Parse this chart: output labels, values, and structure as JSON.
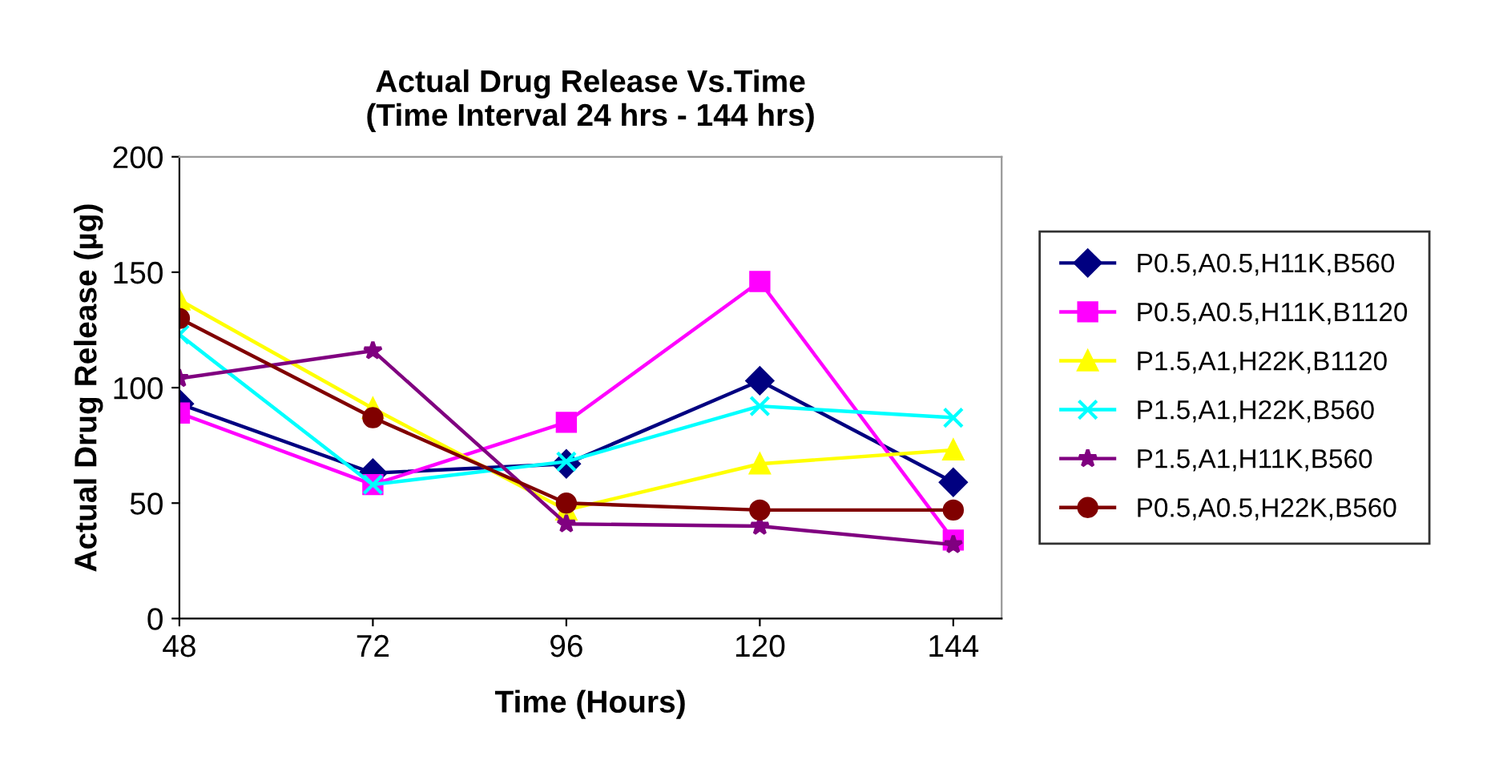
{
  "chart_data": {
    "type": "line",
    "title": "Actual Drug Release Vs.Time\n(Time Interval 24 hrs - 144 hrs)",
    "xlabel": "Time (Hours)",
    "ylabel": "Actual Drug Release (µg)",
    "x": [
      48,
      72,
      96,
      120,
      144
    ],
    "xlim": [
      48,
      150
    ],
    "xticks": [
      48,
      72,
      96,
      120,
      144
    ],
    "ylim": [
      0,
      200
    ],
    "yticks": [
      0,
      50,
      100,
      150,
      200
    ],
    "grid": false,
    "legend": "right",
    "series": [
      {
        "name": "P0.5,A0.5,H11K,B560",
        "color": "#000080",
        "marker": "diamond",
        "values": [
          93,
          63,
          67,
          103,
          59
        ]
      },
      {
        "name": "P0.5,A0.5,H11K,B1120",
        "color": "#ff00ff",
        "marker": "square",
        "values": [
          89,
          58,
          85,
          146,
          34
        ]
      },
      {
        "name": "P1.5,A1,H22K,B1120",
        "color": "#ffff00",
        "marker": "triangle",
        "values": [
          138,
          91,
          47,
          67,
          73
        ]
      },
      {
        "name": "P1.5,A1,H22K,B560",
        "color": "#00ffff",
        "marker": "cross",
        "values": [
          123,
          58,
          68,
          92,
          87
        ]
      },
      {
        "name": "P1.5,A1,H11K,B560",
        "color": "#800080",
        "marker": "star",
        "values": [
          104,
          116,
          41,
          40,
          32
        ]
      },
      {
        "name": "P0.5,A0.5,H22K,B560",
        "color": "#800000",
        "marker": "circle",
        "values": [
          130,
          87,
          50,
          47,
          47
        ]
      }
    ]
  }
}
